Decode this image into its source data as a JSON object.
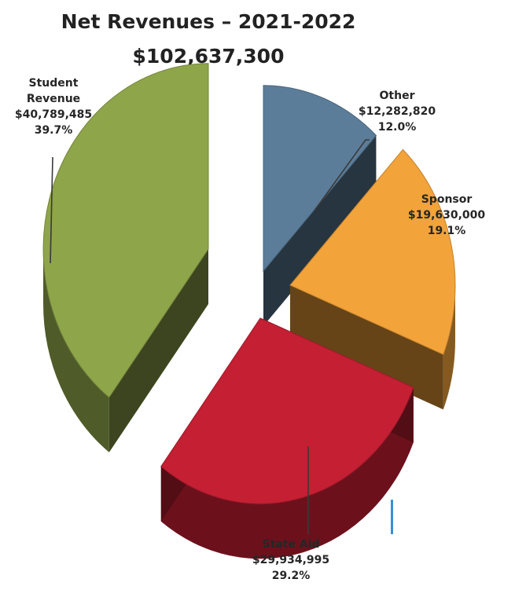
{
  "chart_data": {
    "type": "pie",
    "title": "Net Revenues – 2021-2022",
    "subtitle": "$102,637,300",
    "slices": [
      {
        "label_lines": [
          "Other"
        ],
        "label": "Other",
        "value": 12282820,
        "value_text": "$12,282,820",
        "percent": 12.0,
        "percent_text": "12.0%",
        "color": "#5b7d99"
      },
      {
        "label_lines": [
          "Sponsor"
        ],
        "label": "Sponsor",
        "value": 19630000,
        "value_text": "$19,630,000",
        "percent": 19.1,
        "percent_text": "19.1%",
        "color": "#f2a33a"
      },
      {
        "label_lines": [
          "State Aid"
        ],
        "label": "State Aid",
        "value": 29934995,
        "value_text": "$29,934,995",
        "percent": 29.2,
        "percent_text": "29.2%",
        "color": "#c41f33"
      },
      {
        "label_lines": [
          "Student",
          "Revenue"
        ],
        "label": "Student Revenue",
        "value": 40789485,
        "value_text": "$40,789,485",
        "percent": 39.7,
        "percent_text": "39.7%",
        "color": "#8fa54a"
      }
    ]
  }
}
